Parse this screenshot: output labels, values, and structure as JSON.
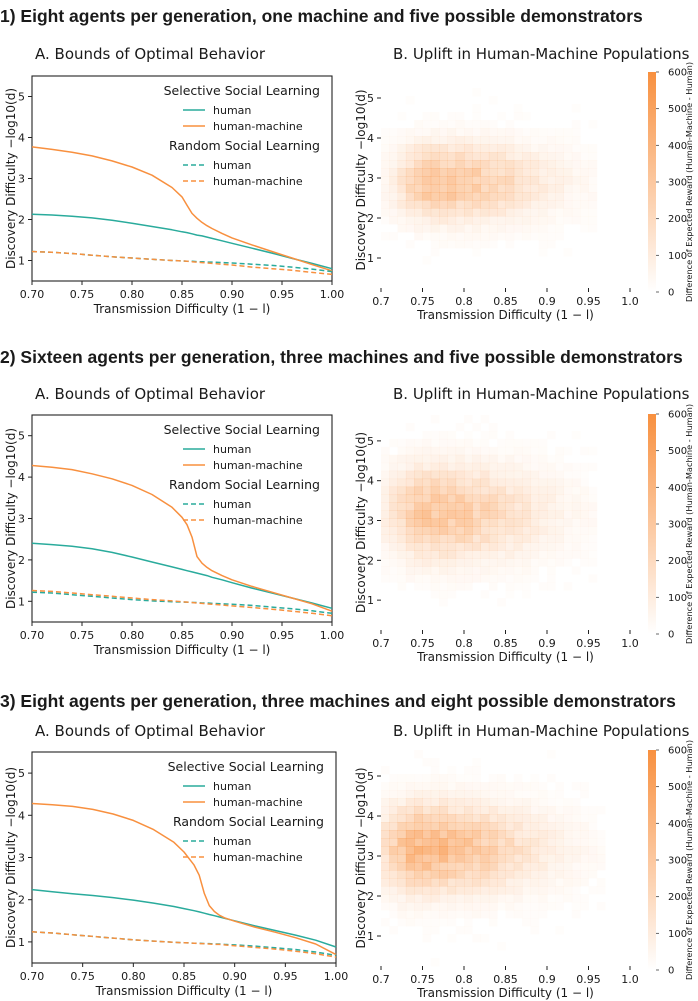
{
  "colors": {
    "human": "#2aab9c",
    "machine": "#f8903f",
    "heat": "#f8903f"
  },
  "chart_data": [
    {
      "type": "line",
      "section_heading": "1)  Eight agents per generation, one machine and five possible demonstrators",
      "title": "A. Bounds of Optimal Behavior",
      "xlabel": "Transmission Difficulty  (1 − l)",
      "ylabel": "Discovery Difficulty   −log10(d)",
      "xlim": [
        0.7,
        1.0
      ],
      "ylim": [
        0.5,
        5.5
      ],
      "x_ticks": [
        "0.70",
        "0.75",
        "0.80",
        "0.85",
        "0.90",
        "0.95",
        "1.00"
      ],
      "y_ticks": [
        "1",
        "2",
        "3",
        "4",
        "5"
      ],
      "legend": {
        "selective_title": "Selective Social Learning",
        "random_title": "Random Social Learning",
        "human": "human",
        "machine": "human-machine"
      },
      "x": [
        0.7,
        0.72,
        0.74,
        0.76,
        0.78,
        0.8,
        0.82,
        0.84,
        0.85,
        0.855,
        0.86,
        0.865,
        0.87,
        0.875,
        0.88,
        0.89,
        0.9,
        0.92,
        0.94,
        0.96,
        0.98,
        1.0
      ],
      "series": [
        {
          "name": "selective-human",
          "style": "solid",
          "color": "human",
          "values": [
            2.13,
            2.11,
            2.08,
            2.04,
            1.98,
            1.91,
            1.83,
            1.75,
            1.7,
            1.68,
            1.65,
            1.62,
            1.6,
            1.57,
            1.54,
            1.48,
            1.42,
            1.3,
            1.18,
            1.05,
            0.93,
            0.8
          ]
        },
        {
          "name": "selective-human-machine",
          "style": "solid",
          "color": "machine",
          "values": [
            3.77,
            3.71,
            3.64,
            3.55,
            3.43,
            3.28,
            3.08,
            2.78,
            2.55,
            2.35,
            2.15,
            2.03,
            1.93,
            1.85,
            1.78,
            1.66,
            1.55,
            1.38,
            1.22,
            1.06,
            0.9,
            0.75
          ]
        },
        {
          "name": "random-human",
          "style": "dashed",
          "color": "human",
          "values": [
            1.22,
            1.2,
            1.17,
            1.13,
            1.09,
            1.06,
            1.03,
            1.0,
            0.99,
            0.98,
            0.98,
            0.97,
            0.97,
            0.96,
            0.96,
            0.95,
            0.94,
            0.91,
            0.88,
            0.84,
            0.79,
            0.73
          ]
        },
        {
          "name": "random-human-machine",
          "style": "dashed",
          "color": "machine",
          "values": [
            1.22,
            1.2,
            1.17,
            1.13,
            1.09,
            1.06,
            1.03,
            1.0,
            0.99,
            0.98,
            0.97,
            0.96,
            0.95,
            0.94,
            0.93,
            0.91,
            0.89,
            0.84,
            0.8,
            0.76,
            0.71,
            0.66
          ]
        }
      ]
    },
    {
      "type": "heatmap",
      "title": "B. Uplift in Human-Machine Populations",
      "xlabel": "Transmission Difficulty  (1 − l)",
      "ylabel": "Discovery Difficulty   −log10(d)",
      "x_ticks": [
        "0.7",
        "0.75",
        "0.8",
        "0.85",
        "0.9",
        "0.95",
        "1.0"
      ],
      "y_ticks": [
        "1",
        "2",
        "3",
        "4",
        "5"
      ],
      "colorbar_label": "Difference of Expected Reward (Human-Machine - Human)",
      "colorbar_ticks": [
        "0",
        "100",
        "200",
        "300",
        "400",
        "500",
        "600"
      ],
      "colorbar_range": [
        0,
        600
      ],
      "peak_value": 300,
      "center": {
        "x": 0.765,
        "y": 2.9
      },
      "spread": {
        "x_left": 0.03,
        "x_right": 0.085,
        "y": 0.6
      },
      "cutoff_x": 0.955
    },
    {
      "type": "line",
      "section_heading": "2)  Sixteen agents per generation, three machines and five possible demonstrators",
      "title": "A. Bounds of Optimal Behavior",
      "xlabel": "Transmission Difficulty  (1 − l)",
      "ylabel": "Discovery Difficulty   −log10(d)",
      "xlim": [
        0.7,
        1.0
      ],
      "ylim": [
        0.5,
        5.5
      ],
      "x_ticks": [
        "0.70",
        "0.75",
        "0.80",
        "0.85",
        "0.90",
        "0.95",
        "1.00"
      ],
      "y_ticks": [
        "1",
        "2",
        "3",
        "4",
        "5"
      ],
      "legend": {
        "selective_title": "Selective Social Learning",
        "random_title": "Random Social Learning",
        "human": "human",
        "machine": "human-machine"
      },
      "x": [
        0.7,
        0.72,
        0.74,
        0.76,
        0.78,
        0.8,
        0.82,
        0.84,
        0.85,
        0.855,
        0.86,
        0.865,
        0.87,
        0.875,
        0.88,
        0.89,
        0.9,
        0.92,
        0.94,
        0.96,
        0.98,
        1.0
      ],
      "series": [
        {
          "name": "selective-human",
          "style": "solid",
          "color": "human",
          "values": [
            2.4,
            2.37,
            2.33,
            2.27,
            2.18,
            2.07,
            1.95,
            1.83,
            1.77,
            1.74,
            1.71,
            1.68,
            1.65,
            1.62,
            1.58,
            1.52,
            1.45,
            1.32,
            1.2,
            1.08,
            0.96,
            0.83
          ]
        },
        {
          "name": "selective-human-machine",
          "style": "solid",
          "color": "machine",
          "values": [
            4.28,
            4.24,
            4.18,
            4.08,
            3.96,
            3.8,
            3.58,
            3.27,
            3.03,
            2.85,
            2.55,
            2.08,
            1.92,
            1.82,
            1.74,
            1.62,
            1.52,
            1.36,
            1.22,
            1.08,
            0.94,
            0.76
          ]
        },
        {
          "name": "random-human",
          "style": "dashed",
          "color": "human",
          "values": [
            1.22,
            1.2,
            1.16,
            1.12,
            1.08,
            1.04,
            1.01,
            0.99,
            0.98,
            0.98,
            0.97,
            0.97,
            0.96,
            0.96,
            0.95,
            0.94,
            0.93,
            0.9,
            0.86,
            0.82,
            0.77,
            0.71
          ]
        },
        {
          "name": "random-human-machine",
          "style": "dashed",
          "color": "machine",
          "values": [
            1.26,
            1.24,
            1.2,
            1.16,
            1.12,
            1.08,
            1.04,
            1.01,
            0.99,
            0.98,
            0.97,
            0.96,
            0.95,
            0.94,
            0.93,
            0.91,
            0.89,
            0.85,
            0.81,
            0.76,
            0.71,
            0.65
          ]
        }
      ]
    },
    {
      "type": "heatmap",
      "title": "B. Uplift in Human-Machine Populations",
      "xlabel": "Transmission Difficulty  (1 − l)",
      "ylabel": "Discovery Difficulty   −log10(d)",
      "x_ticks": [
        "0.7",
        "0.75",
        "0.8",
        "0.85",
        "0.9",
        "0.95",
        "1.0"
      ],
      "y_ticks": [
        "1",
        "2",
        "3",
        "4",
        "5"
      ],
      "colorbar_label": "Difference of Expected Reward (Human-Machine - Human)",
      "colorbar_ticks": [
        "0",
        "100",
        "200",
        "300",
        "400",
        "500",
        "600"
      ],
      "colorbar_range": [
        0,
        600
      ],
      "peak_value": 280,
      "center": {
        "x": 0.76,
        "y": 3.2
      },
      "spread": {
        "x_left": 0.035,
        "x_right": 0.085,
        "y": 0.75
      },
      "cutoff_x": 0.955
    },
    {
      "type": "line",
      "section_heading": "3) Eight agents per generation, three machines and eight possible demonstrators",
      "title": "A. Bounds of Optimal Behavior",
      "xlabel": "Transmission Difficulty  (1 − l)",
      "ylabel": "Discovery Difficulty   −log10(d)",
      "xlim": [
        0.7,
        1.0
      ],
      "ylim": [
        0.5,
        5.5
      ],
      "x_ticks": [
        "0.70",
        "0.75",
        "0.80",
        "0.85",
        "0.90",
        "0.95",
        "1.00"
      ],
      "y_ticks": [
        "1",
        "2",
        "3",
        "4",
        "5"
      ],
      "legend": {
        "selective_title": "Selective Social Learning",
        "random_title": "Random Social Learning",
        "human": "human",
        "machine": "human-machine"
      },
      "x": [
        0.7,
        0.72,
        0.74,
        0.76,
        0.78,
        0.8,
        0.82,
        0.84,
        0.85,
        0.86,
        0.865,
        0.87,
        0.875,
        0.88,
        0.885,
        0.89,
        0.9,
        0.92,
        0.94,
        0.96,
        0.98,
        1.0
      ],
      "series": [
        {
          "name": "selective-human",
          "style": "solid",
          "color": "human",
          "values": [
            2.24,
            2.19,
            2.14,
            2.1,
            2.05,
            1.99,
            1.92,
            1.84,
            1.79,
            1.74,
            1.71,
            1.68,
            1.65,
            1.62,
            1.59,
            1.56,
            1.5,
            1.38,
            1.27,
            1.16,
            1.04,
            0.88
          ]
        },
        {
          "name": "selective-human-machine",
          "style": "solid",
          "color": "machine",
          "values": [
            4.28,
            4.25,
            4.21,
            4.14,
            4.03,
            3.88,
            3.66,
            3.36,
            3.13,
            2.82,
            2.58,
            2.15,
            1.86,
            1.72,
            1.63,
            1.57,
            1.49,
            1.35,
            1.23,
            1.1,
            0.95,
            0.7
          ]
        },
        {
          "name": "random-human",
          "style": "dashed",
          "color": "human",
          "values": [
            1.24,
            1.21,
            1.17,
            1.13,
            1.09,
            1.05,
            1.02,
            0.99,
            0.98,
            0.97,
            0.97,
            0.96,
            0.96,
            0.95,
            0.95,
            0.94,
            0.93,
            0.9,
            0.86,
            0.82,
            0.76,
            0.68
          ]
        },
        {
          "name": "random-human-machine",
          "style": "dashed",
          "color": "machine",
          "values": [
            1.24,
            1.21,
            1.17,
            1.13,
            1.09,
            1.05,
            1.02,
            0.99,
            0.98,
            0.97,
            0.96,
            0.96,
            0.95,
            0.94,
            0.94,
            0.93,
            0.91,
            0.87,
            0.83,
            0.78,
            0.72,
            0.64
          ]
        }
      ]
    },
    {
      "type": "heatmap",
      "title": "B. Uplift in Human-Machine Populations",
      "xlabel": "Transmission Difficulty  (1 − l)",
      "ylabel": "Discovery Difficulty   −log10(d)",
      "x_ticks": [
        "0.7",
        "0.75",
        "0.8",
        "0.85",
        "0.9",
        "0.95",
        "1.0"
      ],
      "y_ticks": [
        "1",
        "2",
        "3",
        "4",
        "5"
      ],
      "colorbar_label": "Difference of Expected Reward (Human-Machine - Human)",
      "colorbar_ticks": [
        "0",
        "100",
        "200",
        "300",
        "400",
        "500",
        "600"
      ],
      "colorbar_range": [
        0,
        600
      ],
      "peak_value": 360,
      "center": {
        "x": 0.745,
        "y": 3.2
      },
      "spread": {
        "x_left": 0.03,
        "x_right": 0.09,
        "y": 0.7
      },
      "cutoff_x": 0.965
    }
  ]
}
